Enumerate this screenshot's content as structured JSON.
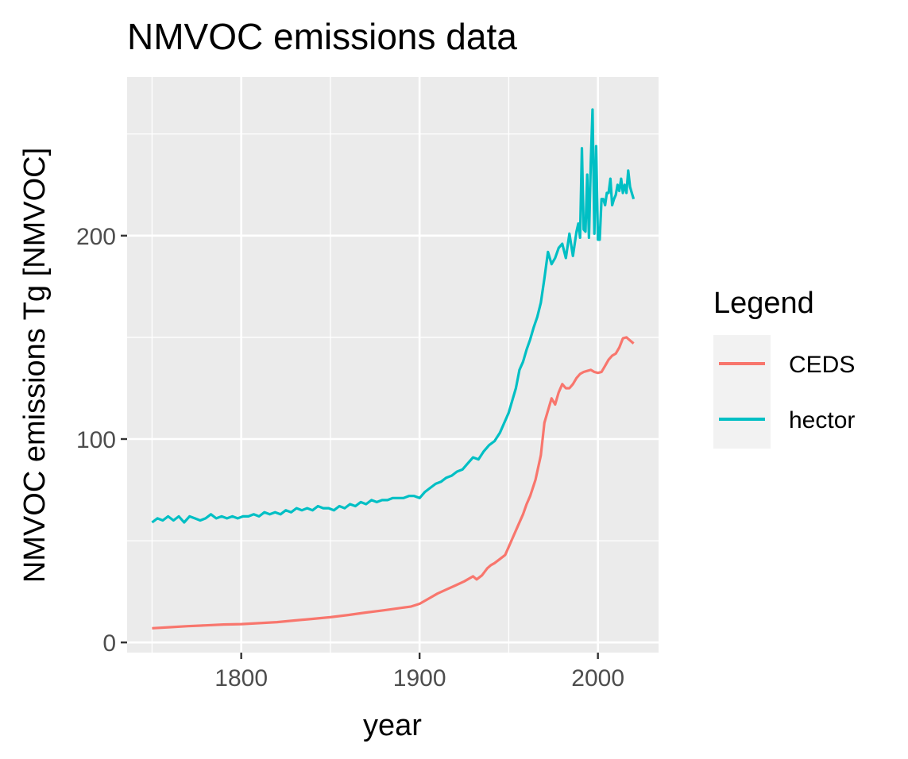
{
  "chart_data": {
    "type": "line",
    "title": "NMVOC emissions data",
    "xlabel": "year",
    "ylabel": "NMVOC emissions Tg [NMVOC]",
    "xlim": [
      1736,
      2034
    ],
    "ylim": [
      -5,
      278
    ],
    "x_major_ticks": [
      1800,
      1900,
      2000
    ],
    "x_minor_ticks": [
      1750,
      1850,
      1950
    ],
    "y_major_ticks": [
      0,
      100,
      200
    ],
    "y_minor_ticks": [
      50,
      150,
      250
    ],
    "x_tick_labels": [
      "1800",
      "1900",
      "2000"
    ],
    "y_tick_labels": [
      "0",
      "100",
      "200"
    ],
    "grid": true,
    "legend": {
      "title": "Legend",
      "position": "right",
      "entries": [
        "CEDS",
        "hector"
      ]
    },
    "colors": {
      "CEDS": "#F8766D",
      "hector": "#00BFC4",
      "panel": "#EBEBEB",
      "grid": "#FFFFFF",
      "legend_key": "#F2F2F2"
    },
    "series": [
      {
        "name": "CEDS",
        "color": "#F8766D",
        "x": [
          1750,
          1760,
          1770,
          1780,
          1790,
          1800,
          1810,
          1820,
          1830,
          1840,
          1850,
          1860,
          1870,
          1880,
          1890,
          1895,
          1900,
          1905,
          1910,
          1915,
          1920,
          1925,
          1930,
          1932,
          1935,
          1938,
          1940,
          1942,
          1945,
          1948,
          1950,
          1952,
          1955,
          1958,
          1960,
          1962,
          1965,
          1968,
          1970,
          1972,
          1974,
          1976,
          1978,
          1980,
          1982,
          1984,
          1986,
          1988,
          1990,
          1992,
          1994,
          1996,
          1998,
          2000,
          2002,
          2004,
          2006,
          2008,
          2010,
          2012,
          2014,
          2016,
          2018,
          2020
        ],
        "values": [
          7.0,
          7.5,
          8.0,
          8.4,
          8.8,
          9.0,
          9.5,
          10.0,
          10.8,
          11.6,
          12.4,
          13.5,
          14.7,
          15.8,
          17.0,
          17.6,
          19.0,
          21.5,
          24.0,
          26.0,
          28.0,
          30.0,
          32.5,
          31.0,
          33.0,
          36.5,
          38.0,
          39.0,
          41.0,
          43.0,
          47.0,
          51.0,
          57.0,
          63.0,
          68.0,
          72.0,
          80.0,
          92.0,
          108.0,
          114.0,
          120.0,
          117.0,
          123.0,
          127.0,
          125.0,
          125.0,
          127.0,
          130.0,
          132.0,
          133.0,
          133.5,
          134.0,
          133.0,
          132.5,
          133.0,
          136.0,
          139.0,
          141.0,
          142.0,
          145.0,
          149.5,
          150.0,
          148.5,
          147.0
        ]
      },
      {
        "name": "hector",
        "color": "#00BFC4",
        "x": [
          1750,
          1753,
          1756,
          1759,
          1762,
          1765,
          1768,
          1771,
          1774,
          1777,
          1780,
          1783,
          1786,
          1789,
          1792,
          1795,
          1798,
          1801,
          1804,
          1807,
          1810,
          1813,
          1816,
          1819,
          1822,
          1825,
          1828,
          1831,
          1834,
          1837,
          1840,
          1843,
          1846,
          1849,
          1852,
          1855,
          1858,
          1861,
          1864,
          1867,
          1870,
          1873,
          1876,
          1879,
          1882,
          1885,
          1888,
          1891,
          1894,
          1897,
          1900,
          1903,
          1906,
          1909,
          1912,
          1915,
          1918,
          1921,
          1924,
          1927,
          1930,
          1933,
          1936,
          1939,
          1942,
          1945,
          1948,
          1950,
          1952,
          1954,
          1956,
          1958,
          1960,
          1962,
          1964,
          1966,
          1968,
          1970,
          1972,
          1974,
          1976,
          1978,
          1980,
          1982,
          1984,
          1986,
          1988,
          1989,
          1990,
          1991,
          1992,
          1993,
          1994,
          1995,
          1996,
          1997,
          1998,
          1999,
          2000,
          2001,
          2002,
          2003,
          2004,
          2005,
          2006,
          2007,
          2008,
          2009,
          2010,
          2011,
          2012,
          2013,
          2014,
          2015,
          2016,
          2017,
          2018,
          2019,
          2020
        ],
        "values": [
          59,
          61,
          60,
          62,
          60,
          62,
          59,
          62,
          61,
          60,
          61,
          63,
          61,
          62,
          61,
          62,
          61,
          62,
          62,
          63,
          62,
          64,
          63,
          64,
          63,
          65,
          64,
          66,
          65,
          66,
          65,
          67,
          66,
          66,
          65,
          67,
          66,
          68,
          67,
          69,
          68,
          70,
          69,
          70,
          70,
          71,
          71,
          71,
          72,
          72,
          71,
          74,
          76,
          78,
          79,
          81,
          82,
          84,
          85,
          88,
          91,
          90,
          94,
          97,
          99,
          103,
          109,
          113,
          119,
          125,
          134,
          138,
          144,
          149,
          155,
          160,
          167,
          179,
          192,
          186,
          189,
          194,
          196,
          189,
          201,
          190,
          202,
          206,
          199,
          243,
          203,
          202,
          230,
          199,
          236,
          262,
          201,
          244,
          198,
          198,
          218,
          218,
          215,
          221,
          221,
          228,
          215,
          218,
          220,
          225,
          222,
          228,
          221,
          225,
          221,
          232,
          224,
          221,
          218
        ]
      }
    ]
  }
}
